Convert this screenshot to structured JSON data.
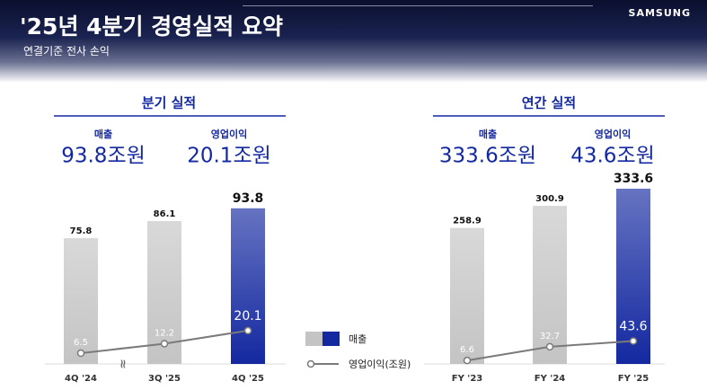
{
  "header": {
    "title": "'25년 4분기 경영실적 요약",
    "subtitle": "연결기준 전사 손익",
    "logo": "SAMSUNG"
  },
  "chart_data": [
    {
      "type": "bar",
      "title": "분기 실적",
      "summary": [
        {
          "label": "매출",
          "value": "93.8조원"
        },
        {
          "label": "영업이익",
          "value": "20.1조원"
        }
      ],
      "categories": [
        "4Q '24",
        "3Q '25",
        "4Q '25"
      ],
      "series": [
        {
          "name": "매출",
          "type": "bar",
          "colors": [
            "#c4c4c4",
            "#c4c4c4",
            "#1428a0"
          ],
          "values": [
            75.8,
            86.1,
            93.8
          ]
        },
        {
          "name": "영업이익(조원)",
          "type": "line",
          "color": "#7a7a7a",
          "values": [
            6.5,
            12.2,
            20.1
          ]
        }
      ],
      "ylim": [
        0,
        100
      ],
      "axis_break": true
    },
    {
      "type": "bar",
      "title": "연간 실적",
      "summary": [
        {
          "label": "매출",
          "value": "333.6조원"
        },
        {
          "label": "영업이익",
          "value": "43.6조원"
        }
      ],
      "categories": [
        "FY '23",
        "FY '24",
        "FY '25"
      ],
      "series": [
        {
          "name": "매출",
          "type": "bar",
          "colors": [
            "#c4c4c4",
            "#c4c4c4",
            "#1428a0"
          ],
          "values": [
            258.9,
            300.9,
            333.6
          ]
        },
        {
          "name": "영업이익(조원)",
          "type": "line",
          "color": "#7a7a7a",
          "values": [
            6.6,
            32.7,
            43.6
          ]
        }
      ],
      "ylim": [
        0,
        350
      ],
      "axis_break": false
    }
  ]
}
